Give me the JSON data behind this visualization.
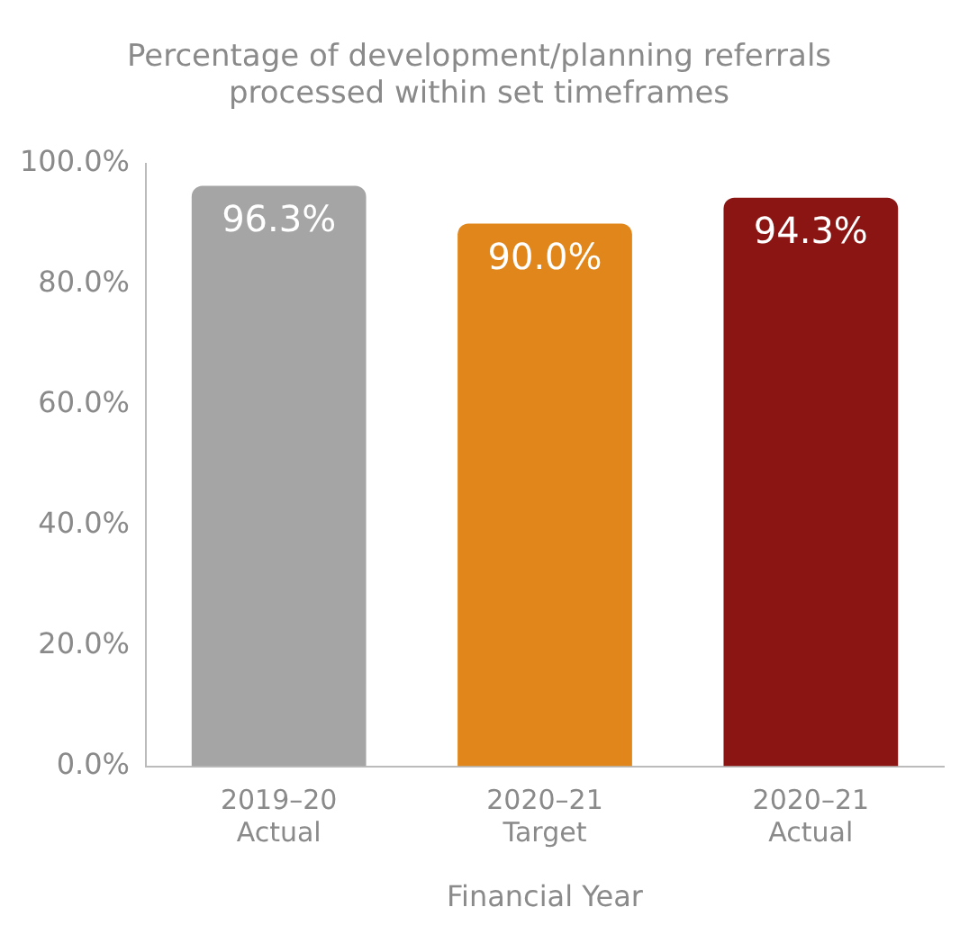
{
  "chart_data": {
    "type": "bar",
    "title": "Percentage of development/planning referrals processed within set timeframes",
    "xlabel": "Financial Year",
    "categories": [
      "2019–20\nActual",
      "2020–21\nTarget",
      "2020–21\nActual"
    ],
    "values": [
      96.3,
      90.0,
      94.3
    ],
    "colors": [
      "#a5a5a5",
      "#e0861a",
      "#8b1513"
    ],
    "value_labels": [
      "96.3%",
      "90.0%",
      "94.3%"
    ],
    "ylim": [
      0,
      100
    ],
    "yticks": [
      {
        "value": 0,
        "label": "0.0%"
      },
      {
        "value": 20,
        "label": "20.0%"
      },
      {
        "value": 40,
        "label": "40.0%"
      },
      {
        "value": 60,
        "label": "60.0%"
      },
      {
        "value": 80,
        "label": "80.0%"
      },
      {
        "value": 100,
        "label": "100.0%"
      }
    ],
    "grid": false,
    "legend": false
  }
}
